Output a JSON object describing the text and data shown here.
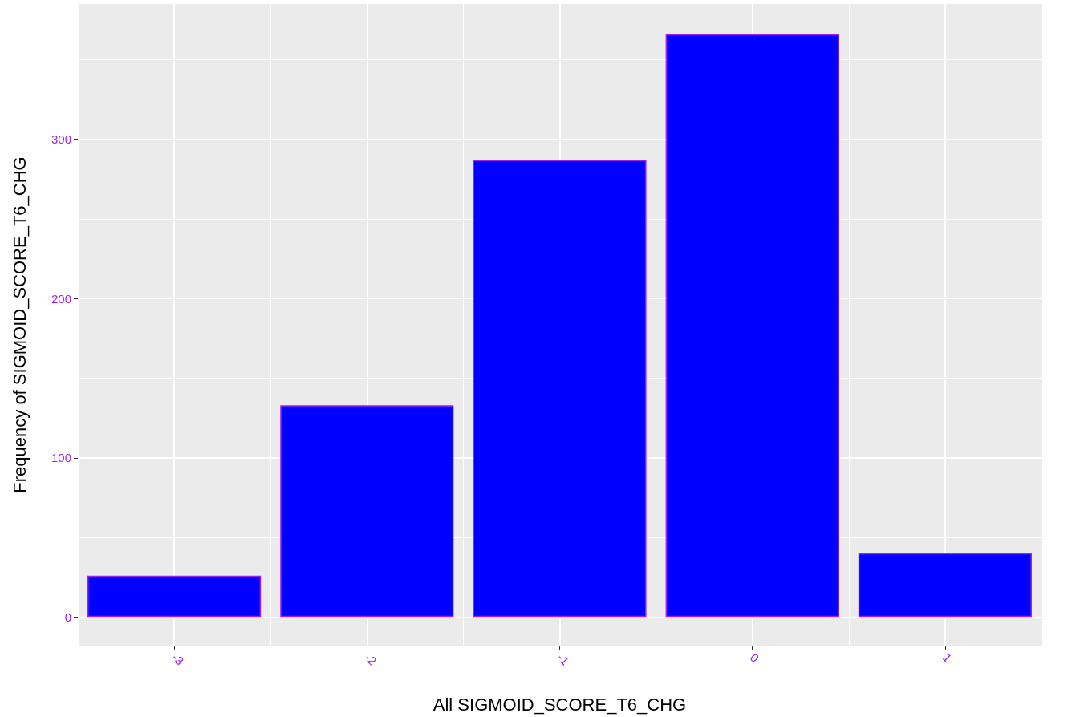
{
  "chart_data": {
    "type": "bar",
    "xlabel": "All SIGMOID_SCORE_T6_CHG",
    "ylabel": "Frequency of SIGMOID_SCORE_T6_CHG",
    "categories": [
      "-3",
      "-2",
      "-1",
      "0",
      "1"
    ],
    "series": [
      {
        "color": "#0000ff",
        "values": [
          26,
          133,
          287,
          366,
          40
        ]
      }
    ],
    "ylim": [
      -18,
      385
    ],
    "yticks": [
      0,
      100,
      200,
      300
    ],
    "grid": true
  }
}
